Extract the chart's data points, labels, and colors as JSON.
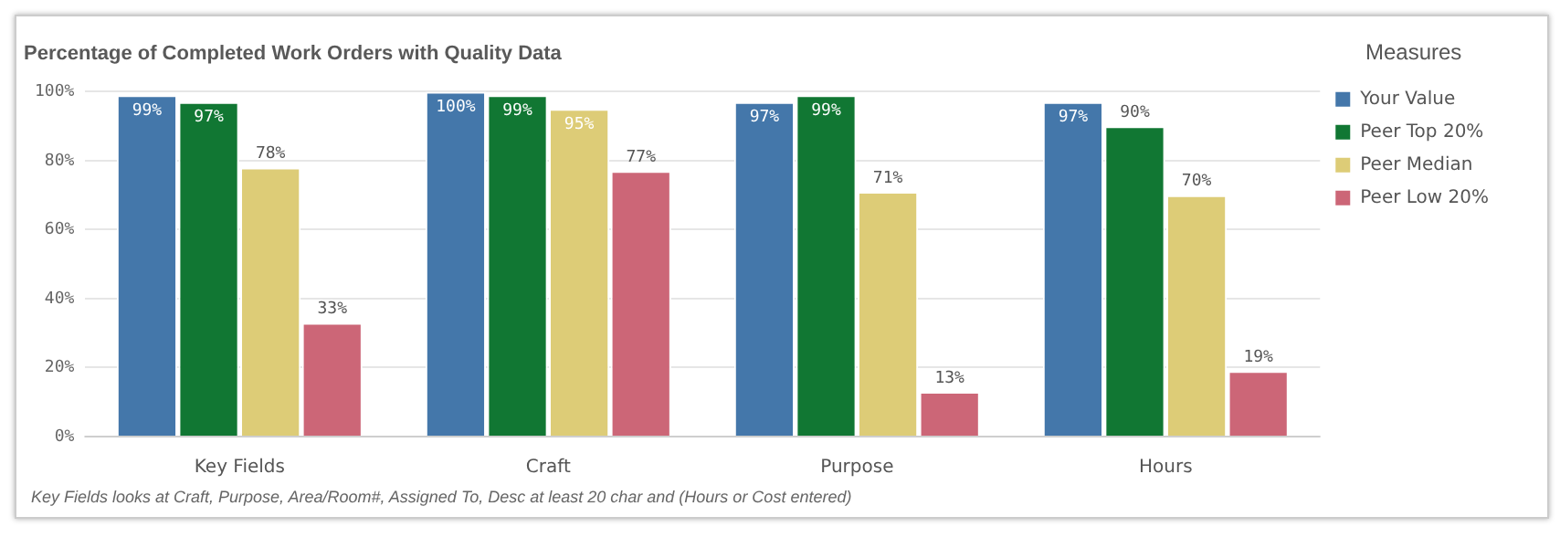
{
  "chart_data": {
    "type": "bar",
    "title": "Percentage of Completed Work Orders with Quality Data",
    "categories": [
      "Key Fields",
      "Craft",
      "Purpose",
      "Hours"
    ],
    "series": [
      {
        "name": "Your Value",
        "color": "#4477aa",
        "values": [
          99,
          100,
          97,
          97
        ],
        "value_labels": [
          "99%",
          "100%",
          "97%",
          "97%"
        ]
      },
      {
        "name": "Peer Top 20%",
        "color": "#117733",
        "values": [
          97,
          99,
          99,
          90
        ],
        "value_labels": [
          "97%",
          "99%",
          "99%",
          "90%"
        ]
      },
      {
        "name": "Peer Median",
        "color": "#ddcc77",
        "values": [
          78,
          95,
          71,
          70
        ],
        "value_labels": [
          "78%",
          "95%",
          "71%",
          "70%"
        ]
      },
      {
        "name": "Peer Low 20%",
        "color": "#cc6677",
        "values": [
          33,
          77,
          13,
          19
        ],
        "value_labels": [
          "33%",
          "77%",
          "13%",
          "19%"
        ]
      }
    ],
    "ylim": [
      0,
      100
    ],
    "yticks": [
      {
        "value": 0,
        "label": "0%"
      },
      {
        "value": 20,
        "label": "20%"
      },
      {
        "value": 40,
        "label": "40%"
      },
      {
        "value": 60,
        "label": "60%"
      },
      {
        "value": 80,
        "label": "80%"
      },
      {
        "value": 100,
        "label": "100%"
      }
    ],
    "grid": "y",
    "legend": "right",
    "legend_title": "Measures",
    "annotations": [
      "Key Fields looks at Craft, Purpose, Area/Room#, Assigned To, Desc at least 20 char and (Hours or Cost entered)"
    ]
  }
}
